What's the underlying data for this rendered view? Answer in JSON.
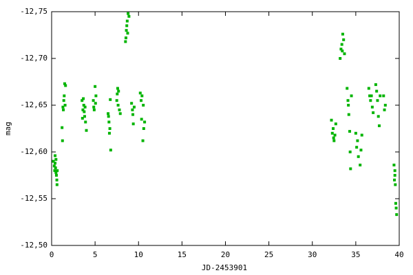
{
  "chart_data": {
    "type": "scatter",
    "x_label": "JD-2453901",
    "y_label": "mag",
    "xlim": [
      0,
      40
    ],
    "xticks": [
      0,
      5,
      10,
      15,
      20,
      25,
      30,
      35,
      40
    ],
    "ylim": [
      -12.5,
      -12.75
    ],
    "yticks": [
      {
        "value": -12.5,
        "label": "-12,50"
      },
      {
        "value": -12.55,
        "label": "-12,55"
      },
      {
        "value": -12.6,
        "label": "-12,60"
      },
      {
        "value": -12.65,
        "label": "-12,65"
      },
      {
        "value": -12.7,
        "label": "-12,70"
      },
      {
        "value": -12.75,
        "label": "-12,75"
      }
    ],
    "series": [
      {
        "color": "#00b400",
        "x": [
          0.2,
          0.3,
          0.35,
          0.4,
          0.45,
          0.5,
          0.55,
          0.6,
          0.62,
          0.5,
          0.4,
          0.65,
          1.5,
          1.6,
          1.4,
          1.3,
          1.35,
          1.2,
          1.25,
          1.45,
          1.55,
          3.5,
          3.6,
          3.7,
          3.8,
          3.9,
          4.0,
          3.65,
          3.75,
          3.55,
          3.85,
          4.8,
          4.9,
          5.0,
          5.1,
          4.85,
          5.05,
          6.5,
          6.6,
          6.7,
          6.8,
          6.55,
          6.75,
          6.65,
          7.5,
          7.6,
          7.7,
          7.8,
          7.9,
          7.65,
          7.55,
          8.5,
          8.6,
          8.7,
          8.8,
          8.55,
          8.65,
          8.75,
          8.9,
          9.2,
          9.3,
          9.4,
          9.5,
          9.35,
          10.2,
          10.3,
          10.4,
          10.5,
          10.6,
          10.7,
          10.35,
          10.55,
          32.2,
          32.3,
          32.4,
          32.5,
          32.6,
          32.7,
          32.45,
          33.2,
          33.3,
          33.4,
          33.5,
          33.6,
          33.7,
          33.45,
          34.0,
          34.1,
          34.2,
          34.3,
          34.4,
          34.5,
          34.15,
          34.35,
          35.0,
          35.1,
          35.2,
          35.3,
          35.5,
          35.6,
          35.7,
          36.5,
          36.6,
          36.7,
          36.8,
          36.9,
          37.0,
          37.3,
          37.4,
          37.5,
          37.6,
          37.7,
          37.8,
          38.2,
          38.3,
          38.4,
          39.4,
          39.5,
          39.55,
          39.6,
          39.65,
          39.7,
          39.5,
          39.45
        ],
        "values": [
          -12.59,
          -12.585,
          -12.58,
          -12.588,
          -12.583,
          -12.578,
          -12.575,
          -12.57,
          -12.565,
          -12.592,
          -12.596,
          -12.58,
          -12.673,
          -12.671,
          -12.655,
          -12.648,
          -12.645,
          -12.626,
          -12.612,
          -12.66,
          -12.65,
          -12.655,
          -12.645,
          -12.65,
          -12.638,
          -12.632,
          -12.623,
          -12.657,
          -12.643,
          -12.636,
          -12.648,
          -12.655,
          -12.645,
          -12.67,
          -12.66,
          -12.648,
          -12.652,
          -12.641,
          -12.632,
          -12.625,
          -12.602,
          -12.638,
          -12.656,
          -12.62,
          -12.655,
          -12.668,
          -12.665,
          -12.645,
          -12.641,
          -12.65,
          -12.662,
          -12.718,
          -12.73,
          -12.74,
          -12.748,
          -12.722,
          -12.735,
          -12.727,
          -12.745,
          -12.652,
          -12.645,
          -12.63,
          -12.648,
          -12.64,
          -12.663,
          -12.655,
          -12.66,
          -12.612,
          -12.625,
          -12.632,
          -12.635,
          -12.65,
          -12.634,
          -12.62,
          -12.625,
          -12.612,
          -12.618,
          -12.63,
          -12.615,
          -12.7,
          -12.71,
          -12.715,
          -12.726,
          -12.72,
          -12.705,
          -12.708,
          -12.668,
          -12.655,
          -12.64,
          -12.622,
          -12.582,
          -12.66,
          -12.65,
          -12.6,
          -12.62,
          -12.605,
          -12.612,
          -12.595,
          -12.586,
          -12.602,
          -12.618,
          -12.668,
          -12.66,
          -12.655,
          -12.66,
          -12.648,
          -12.642,
          -12.672,
          -12.665,
          -12.655,
          -12.638,
          -12.628,
          -12.66,
          -12.66,
          -12.645,
          -12.65,
          -12.586,
          -12.575,
          -12.565,
          -12.545,
          -12.54,
          -12.533,
          -12.58,
          -12.57
        ]
      }
    ]
  }
}
